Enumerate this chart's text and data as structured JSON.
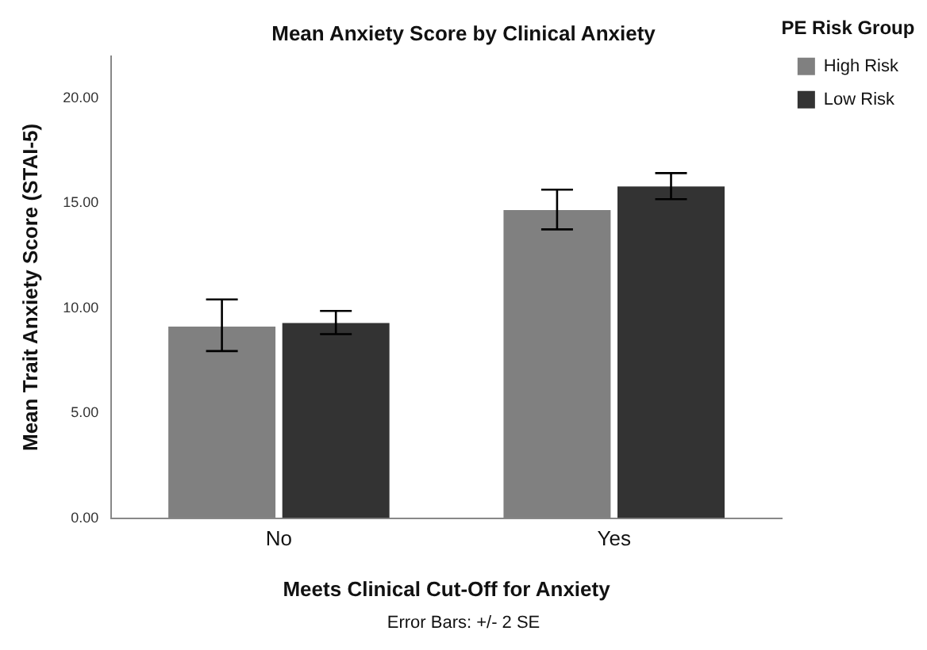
{
  "chart_data": {
    "type": "bar",
    "title": "Mean Anxiety Score by Clinical Anxiety",
    "xlabel": "Meets Clinical Cut-Off for Anxiety",
    "ylabel": "Mean Trait Anxiety Score (STAI-5)",
    "legend_title": "PE Risk Group",
    "legend": "top right",
    "annotations": [
      "Error Bars: +/- 2 SE"
    ],
    "categories": [
      "No",
      "Yes"
    ],
    "ylim": [
      0,
      22
    ],
    "yticks": [
      {
        "value": 0,
        "label": "0.00"
      },
      {
        "value": 5,
        "label": "5.00"
      },
      {
        "value": 10,
        "label": "10.00"
      },
      {
        "value": 15,
        "label": "15.00"
      },
      {
        "value": 20,
        "label": "20.00"
      }
    ],
    "series": [
      {
        "name": "High Risk",
        "color": "#808080",
        "values": [
          9.13,
          14.68
        ],
        "errors": [
          [
            7.96,
            10.42
          ],
          [
            13.76,
            15.65
          ]
        ]
      },
      {
        "name": "Low Risk",
        "color": "#333333",
        "values": [
          9.3,
          15.8
        ],
        "errors": [
          [
            8.77,
            9.87
          ],
          [
            15.2,
            16.44
          ]
        ]
      }
    ]
  }
}
